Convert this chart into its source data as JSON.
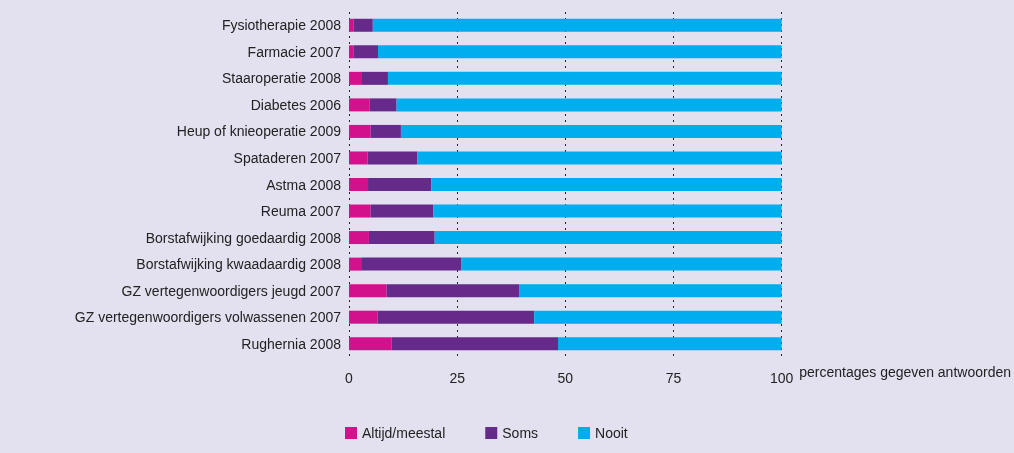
{
  "chart_data": {
    "type": "bar",
    "orientation": "horizontal",
    "stacked": true,
    "categories": [
      "Fysiotherapie 2008",
      "Farmacie 2007",
      "Staaroperatie 2008",
      "Diabetes 2006",
      "Heup of knieoperatie 2009",
      "Spataderen 2007",
      "Astma 2008",
      "Reuma 2007",
      "Borstafwijking goedaardig 2008",
      "Borstafwijking kwaadaardig 2008",
      "GZ vertegenwoordigers jeugd 2007",
      "GZ vertegenwoordigers volwassenen 2007",
      "Rughernia 2008"
    ],
    "series": [
      {
        "name": "Altijd/meestal",
        "color": "#d4118c",
        "values": [
          1,
          1,
          3,
          4.8,
          5,
          4.3,
          4.4,
          5,
          4.6,
          3,
          8.7,
          6.6,
          9.8
        ]
      },
      {
        "name": "Soms",
        "color": "#662a8a",
        "values": [
          4.5,
          5.7,
          6,
          6.2,
          7,
          11.5,
          14.6,
          14.5,
          15.2,
          23,
          30.6,
          36.2,
          38.5
        ]
      },
      {
        "name": "Nooit",
        "color": "#00aeef",
        "values": [
          94.5,
          93.3,
          91,
          89,
          88,
          84.2,
          81,
          80.5,
          80.2,
          74,
          60.7,
          57.2,
          51.7
        ]
      }
    ],
    "xlim": [
      0,
      100
    ],
    "xticks": [
      0,
      25,
      50,
      75,
      100
    ],
    "xlabel": "percentages gegeven antwoorden",
    "grid": "x",
    "legend": "bottom"
  }
}
